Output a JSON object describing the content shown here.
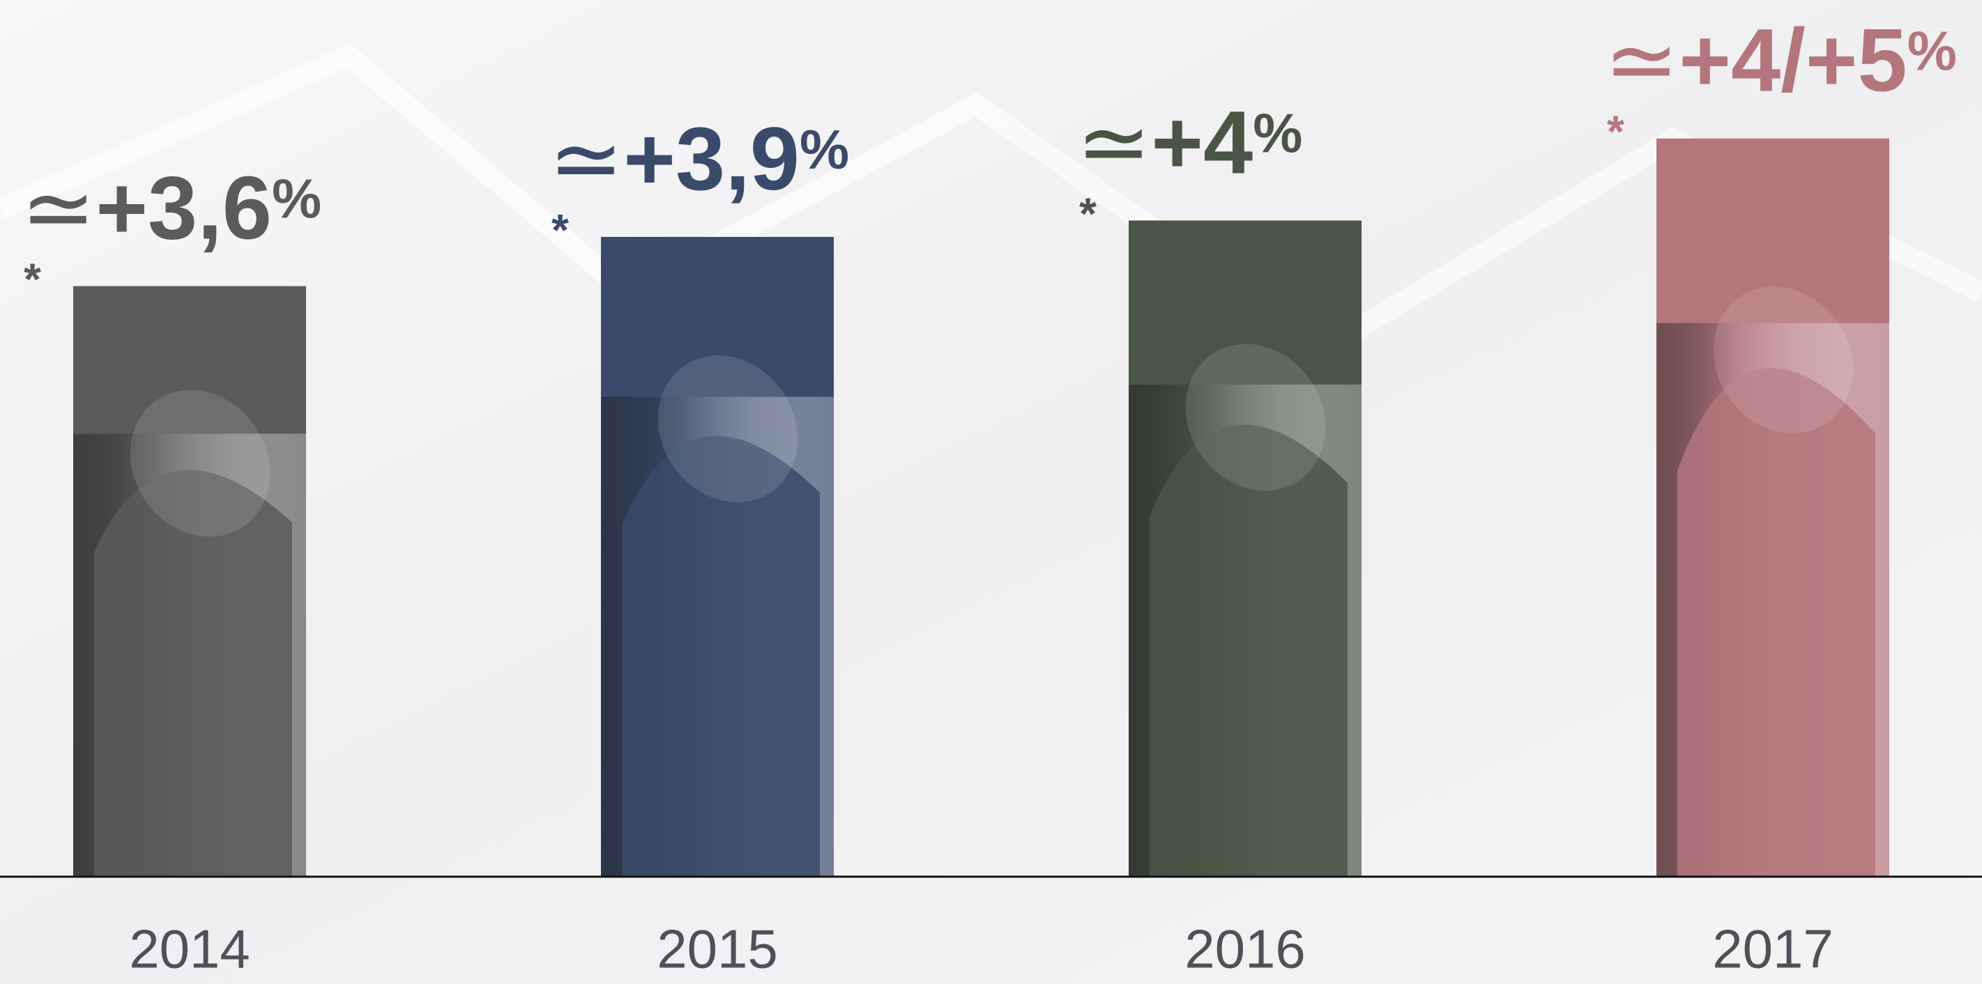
{
  "chart_data": {
    "type": "bar",
    "categories": [
      "2014",
      "2015",
      "2016",
      "2017"
    ],
    "values": [
      3.6,
      3.9,
      4,
      4.5
    ],
    "value_labels": [
      "+3,6",
      "+3,9",
      "+4",
      "+4/+5"
    ],
    "approx_symbol": "≃",
    "unit": "%",
    "footnote_mark": "*",
    "colors": [
      "#5b5b5b",
      "#3b4a6b",
      "#4b5546",
      "#b3767c"
    ],
    "ylim": [
      0,
      5
    ]
  }
}
